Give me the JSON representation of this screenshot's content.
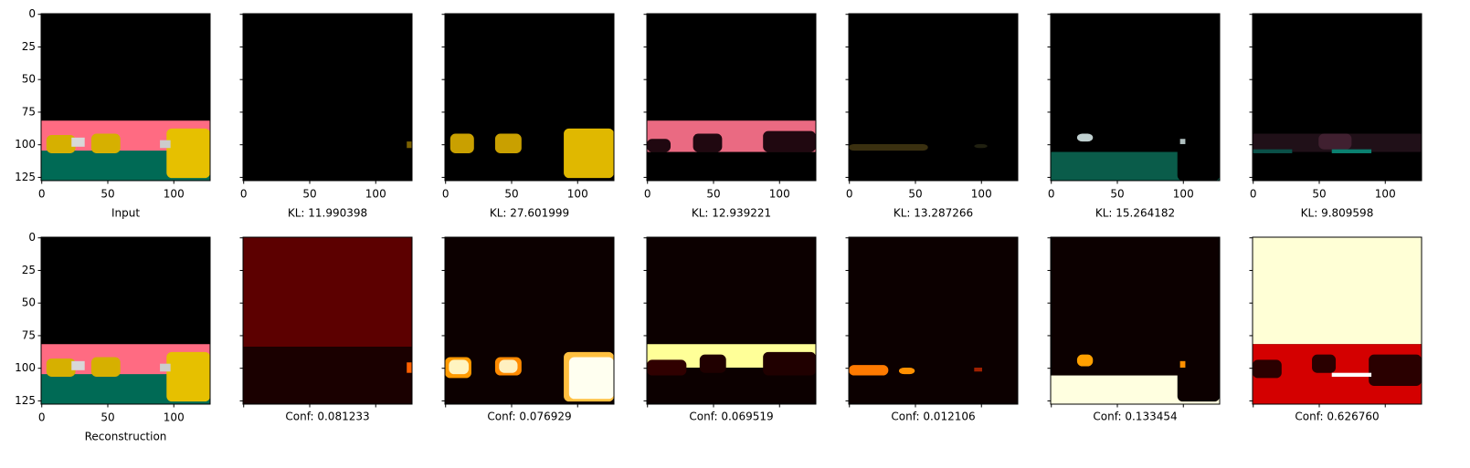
{
  "top_row": [
    {
      "caption": "Input"
    },
    {
      "caption": "KL: 11.990398"
    },
    {
      "caption": "KL: 27.601999"
    },
    {
      "caption": "KL: 12.939221"
    },
    {
      "caption": "KL: 13.287266"
    },
    {
      "caption": "KL: 15.264182"
    },
    {
      "caption": "KL: 9.809598"
    }
  ],
  "bottom_row": [
    {
      "caption": "Reconstruction"
    },
    {
      "caption": "Conf: 0.081233"
    },
    {
      "caption": "Conf: 0.076929"
    },
    {
      "caption": "Conf: 0.069519"
    },
    {
      "caption": "Conf: 0.012106"
    },
    {
      "caption": "Conf: 0.133454"
    },
    {
      "caption": "Conf: 0.626760"
    }
  ],
  "xlim": [
    -0.5,
    127.5
  ],
  "ylim": [
    -0.5,
    127.5
  ],
  "xticks": [
    0,
    50,
    100
  ],
  "yticks": [
    0,
    25,
    50,
    75,
    100,
    125
  ]
}
